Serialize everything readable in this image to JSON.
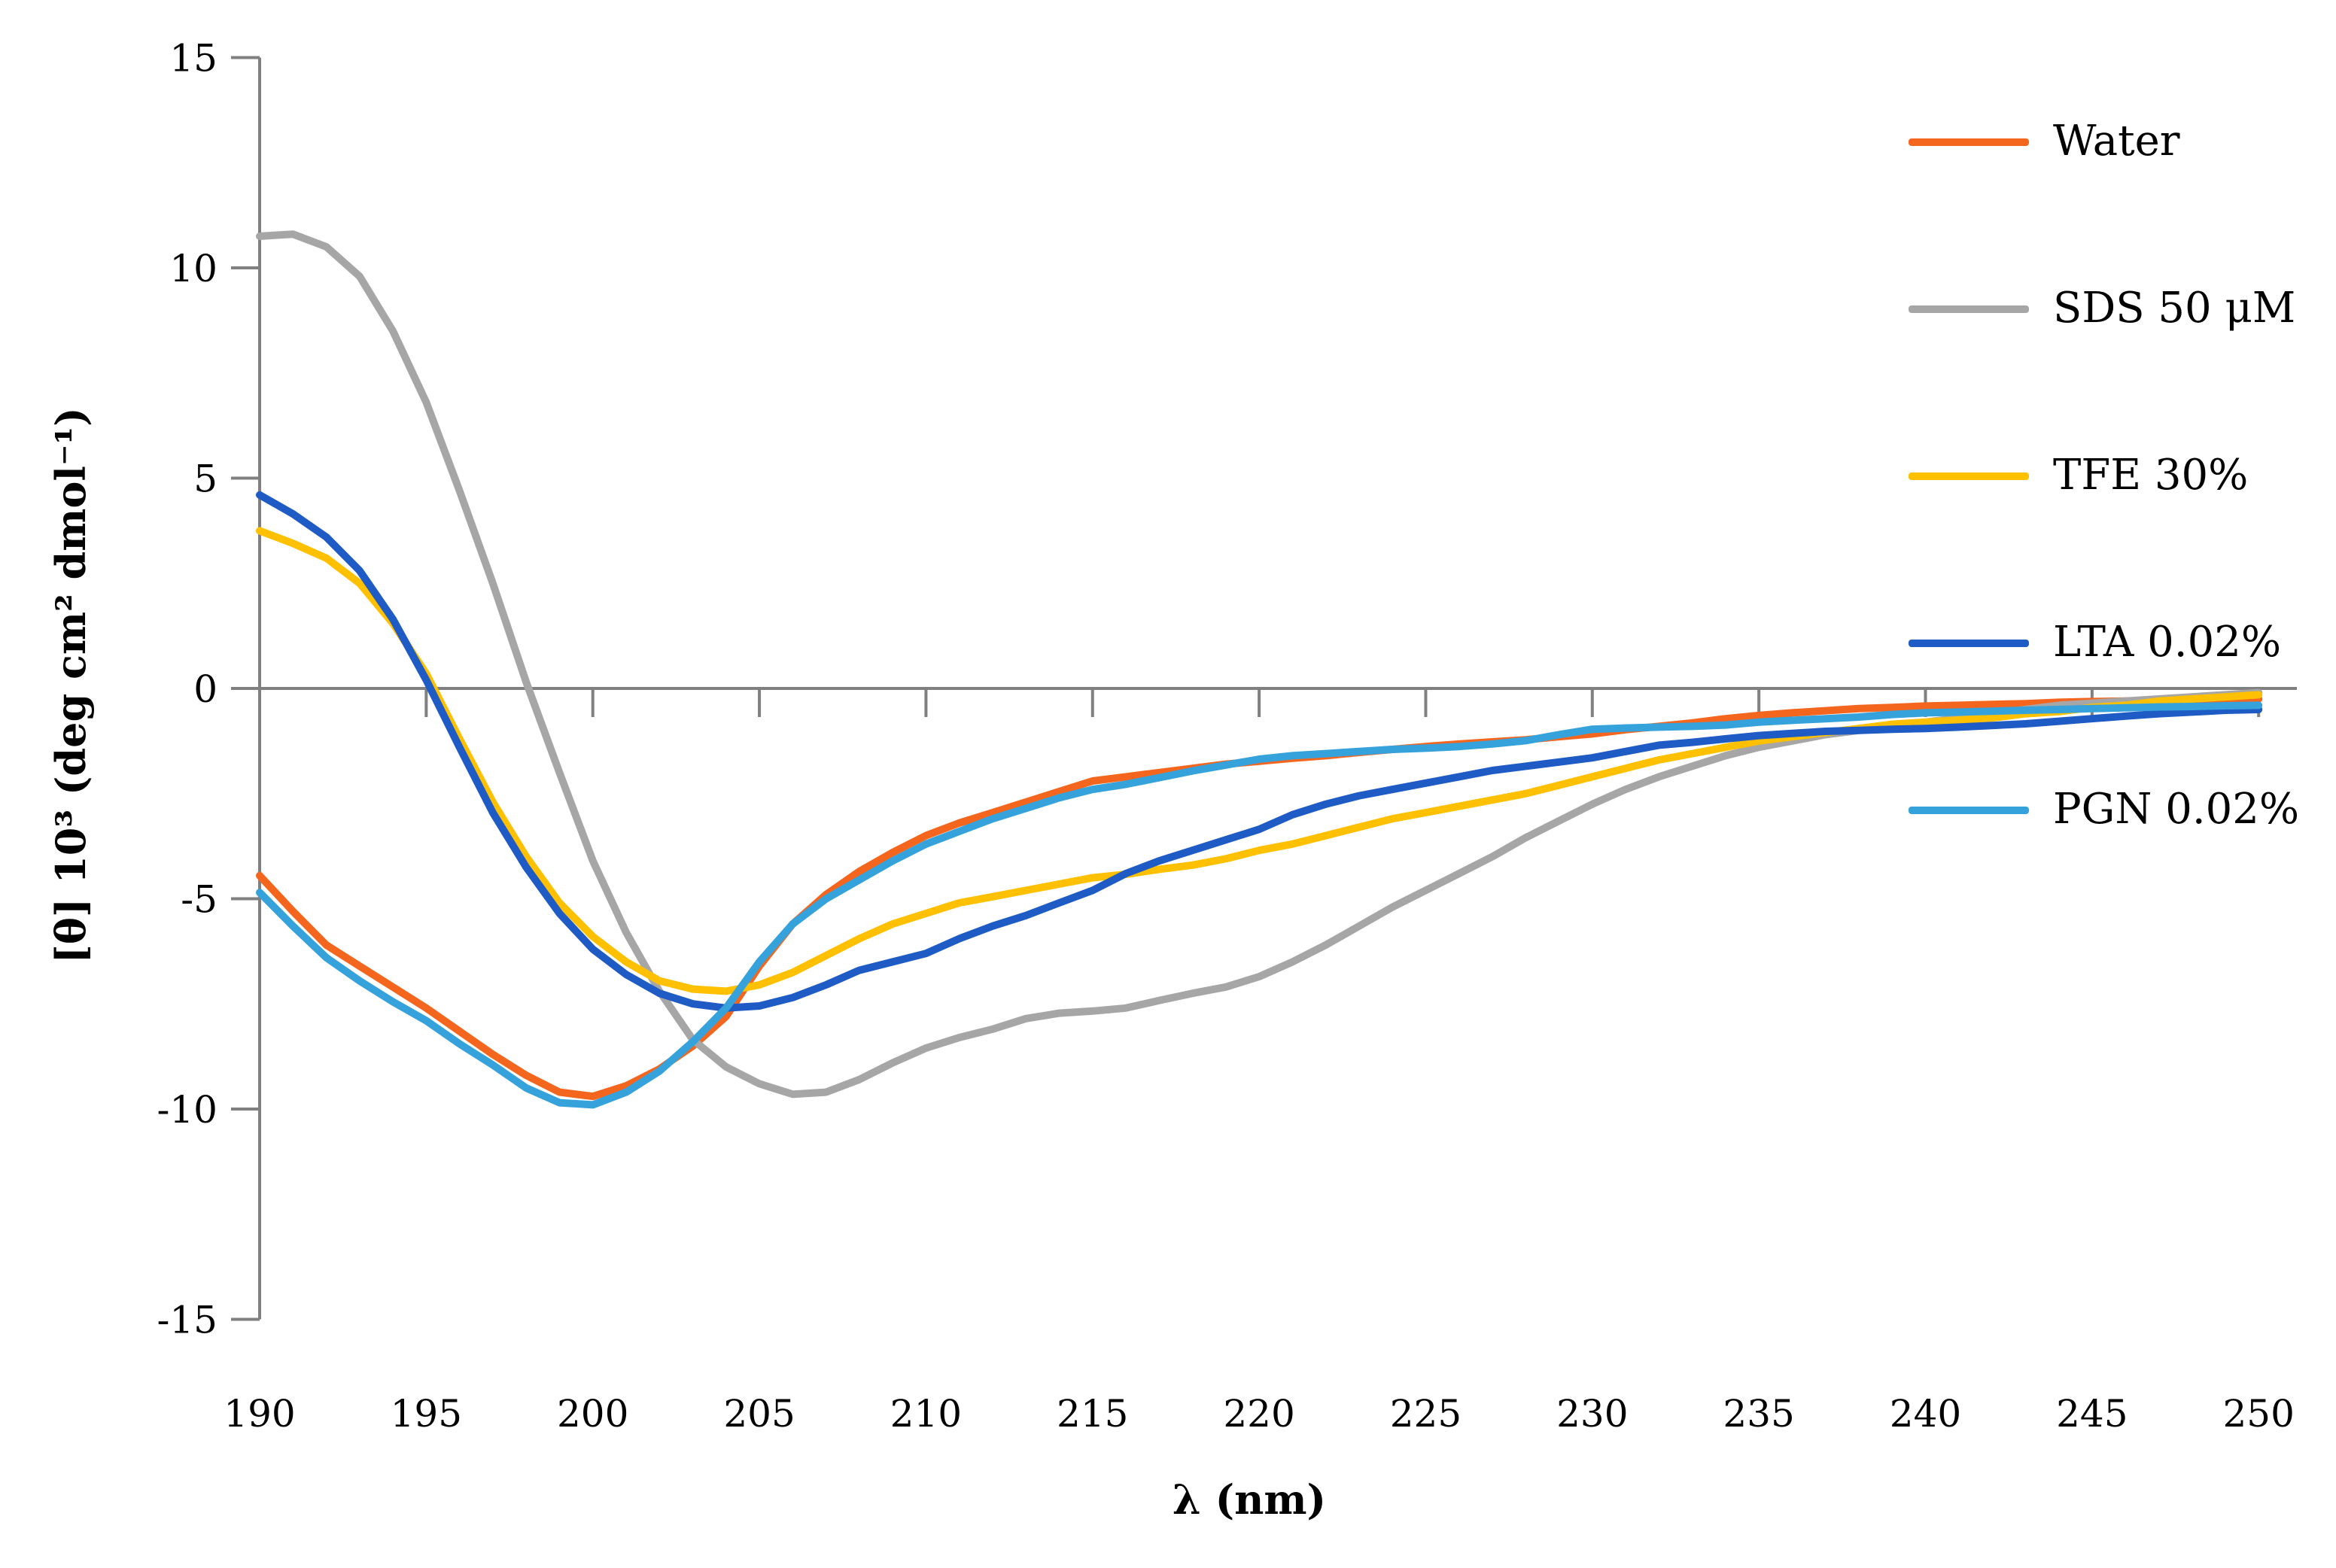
{
  "chart_data": {
    "type": "line",
    "title": "",
    "xlabel": "λ (nm)",
    "ylabel": "[θ] 10³ (deg cm² dmol⁻¹)",
    "xlim": [
      190,
      250
    ],
    "ylim": [
      -15,
      15
    ],
    "xticks": [
      190,
      195,
      200,
      205,
      210,
      215,
      220,
      225,
      230,
      235,
      240,
      245,
      250
    ],
    "yticks": [
      15,
      10,
      5,
      0,
      -5,
      -10,
      -15
    ],
    "grid": "zero-baseline-only",
    "legend_position": "top-right",
    "axis_color": "#808080",
    "text_color": "#000000",
    "x": [
      190,
      191,
      192,
      193,
      194,
      195,
      196,
      197,
      198,
      199,
      200,
      201,
      202,
      203,
      204,
      205,
      206,
      207,
      208,
      209,
      210,
      211,
      212,
      213,
      214,
      215,
      216,
      217,
      218,
      219,
      220,
      221,
      222,
      223,
      224,
      225,
      226,
      227,
      228,
      229,
      230,
      231,
      232,
      233,
      234,
      235,
      236,
      237,
      238,
      239,
      240,
      241,
      242,
      243,
      244,
      245,
      246,
      247,
      248,
      249,
      250
    ],
    "series": [
      {
        "name": "Water",
        "color": "#F4661E",
        "values": [
          -4.45,
          -5.3,
          -6.1,
          -6.6,
          -7.1,
          -7.6,
          -8.15,
          -8.7,
          -9.2,
          -9.6,
          -9.7,
          -9.45,
          -9.05,
          -8.5,
          -7.8,
          -6.6,
          -5.6,
          -4.9,
          -4.35,
          -3.9,
          -3.5,
          -3.2,
          -2.95,
          -2.7,
          -2.45,
          -2.2,
          -2.1,
          -2.0,
          -1.9,
          -1.8,
          -1.73,
          -1.66,
          -1.6,
          -1.52,
          -1.45,
          -1.38,
          -1.32,
          -1.27,
          -1.22,
          -1.15,
          -1.08,
          -0.98,
          -0.9,
          -0.82,
          -0.72,
          -0.64,
          -0.58,
          -0.53,
          -0.48,
          -0.45,
          -0.42,
          -0.4,
          -0.38,
          -0.36,
          -0.33,
          -0.31,
          -0.3,
          -0.28,
          -0.27,
          -0.26,
          -0.25
        ]
      },
      {
        "name": "SDS 50 μM",
        "color": "#A6A6A6",
        "values": [
          10.75,
          10.8,
          10.5,
          9.8,
          8.5,
          6.8,
          4.7,
          2.5,
          0.15,
          -2.0,
          -4.1,
          -5.8,
          -7.2,
          -8.35,
          -9.0,
          -9.4,
          -9.65,
          -9.6,
          -9.3,
          -8.9,
          -8.55,
          -8.3,
          -8.1,
          -7.85,
          -7.72,
          -7.67,
          -7.6,
          -7.42,
          -7.25,
          -7.1,
          -6.85,
          -6.5,
          -6.1,
          -5.65,
          -5.2,
          -4.8,
          -4.4,
          -4.0,
          -3.55,
          -3.15,
          -2.75,
          -2.4,
          -2.1,
          -1.85,
          -1.6,
          -1.4,
          -1.25,
          -1.1,
          -1.0,
          -0.9,
          -0.8,
          -0.7,
          -0.6,
          -0.5,
          -0.4,
          -0.35,
          -0.3,
          -0.25,
          -0.2,
          -0.15,
          -0.1
        ]
      },
      {
        "name": "TFE 30%",
        "color": "#FFC000",
        "values": [
          3.75,
          3.45,
          3.1,
          2.5,
          1.55,
          0.35,
          -1.2,
          -2.7,
          -4.0,
          -5.1,
          -5.9,
          -6.5,
          -6.95,
          -7.15,
          -7.2,
          -7.05,
          -6.75,
          -6.35,
          -5.95,
          -5.6,
          -5.35,
          -5.1,
          -4.95,
          -4.8,
          -4.65,
          -4.5,
          -4.42,
          -4.3,
          -4.2,
          -4.05,
          -3.85,
          -3.7,
          -3.5,
          -3.3,
          -3.1,
          -2.95,
          -2.8,
          -2.65,
          -2.5,
          -2.3,
          -2.1,
          -1.9,
          -1.7,
          -1.55,
          -1.4,
          -1.25,
          -1.15,
          -1.05,
          -0.95,
          -0.85,
          -0.8,
          -0.75,
          -0.7,
          -0.6,
          -0.55,
          -0.45,
          -0.4,
          -0.3,
          -0.25,
          -0.2,
          -0.15
        ]
      },
      {
        "name": "LTA 0.02%",
        "color": "#1F5BC4",
        "values": [
          4.6,
          4.15,
          3.6,
          2.8,
          1.65,
          0.2,
          -1.4,
          -2.95,
          -4.25,
          -5.35,
          -6.2,
          -6.8,
          -7.25,
          -7.5,
          -7.6,
          -7.55,
          -7.35,
          -7.05,
          -6.7,
          -6.5,
          -6.3,
          -5.95,
          -5.65,
          -5.4,
          -5.1,
          -4.8,
          -4.4,
          -4.1,
          -3.85,
          -3.6,
          -3.35,
          -3.0,
          -2.75,
          -2.55,
          -2.4,
          -2.25,
          -2.1,
          -1.95,
          -1.85,
          -1.75,
          -1.65,
          -1.5,
          -1.35,
          -1.28,
          -1.2,
          -1.12,
          -1.07,
          -1.02,
          -1.0,
          -0.97,
          -0.95,
          -0.92,
          -0.88,
          -0.84,
          -0.78,
          -0.72,
          -0.66,
          -0.6,
          -0.56,
          -0.52,
          -0.5
        ]
      },
      {
        "name": "PGN 0.02%",
        "color": "#35A2DC",
        "values": [
          -4.85,
          -5.65,
          -6.4,
          -6.95,
          -7.45,
          -7.9,
          -8.45,
          -8.95,
          -9.5,
          -9.85,
          -9.9,
          -9.6,
          -9.1,
          -8.4,
          -7.6,
          -6.5,
          -5.6,
          -5.0,
          -4.55,
          -4.1,
          -3.7,
          -3.4,
          -3.1,
          -2.85,
          -2.6,
          -2.4,
          -2.28,
          -2.12,
          -1.96,
          -1.82,
          -1.68,
          -1.6,
          -1.55,
          -1.5,
          -1.45,
          -1.42,
          -1.38,
          -1.32,
          -1.24,
          -1.1,
          -0.97,
          -0.94,
          -0.92,
          -0.9,
          -0.87,
          -0.8,
          -0.76,
          -0.72,
          -0.68,
          -0.62,
          -0.58,
          -0.56,
          -0.54,
          -0.52,
          -0.5,
          -0.48,
          -0.46,
          -0.44,
          -0.43,
          -0.41,
          -0.4
        ]
      }
    ]
  }
}
